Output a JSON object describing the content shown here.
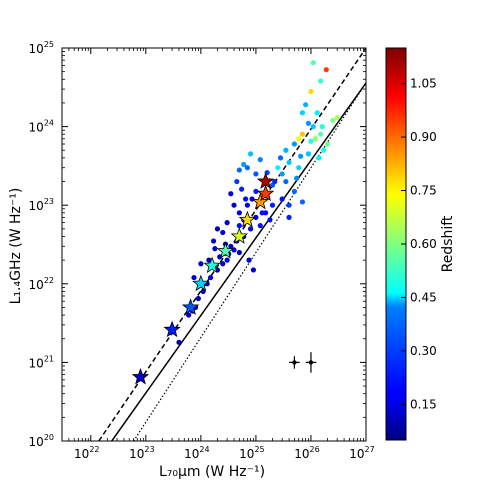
{
  "chart_data": {
    "type": "scatter",
    "title": "",
    "xlabel": "L₇₀μm (W Hz⁻¹)",
    "ylabel": "L₁.₄GHz (W Hz⁻¹)",
    "x_scale": "log",
    "y_scale": "log",
    "xlim": [
      3e+21,
      1e+27
    ],
    "ylim": [
      1e+20,
      1e+25
    ],
    "grid": false,
    "x_ticks": [
      {
        "value": 1e+22,
        "base": "10",
        "exp": "22"
      },
      {
        "value": 1e+23,
        "base": "10",
        "exp": "23"
      },
      {
        "value": 1e+24,
        "base": "10",
        "exp": "24"
      },
      {
        "value": 1e+25,
        "base": "10",
        "exp": "25"
      },
      {
        "value": 1e+26,
        "base": "10",
        "exp": "26"
      },
      {
        "value": 1e+27,
        "base": "10",
        "exp": "27"
      }
    ],
    "y_ticks": [
      {
        "value": 1e+20,
        "base": "10",
        "exp": "20"
      },
      {
        "value": 1e+21,
        "base": "10",
        "exp": "21"
      },
      {
        "value": 1e+22,
        "base": "10",
        "exp": "22"
      },
      {
        "value": 1e+23,
        "base": "10",
        "exp": "23"
      },
      {
        "value": 1e+24,
        "base": "10",
        "exp": "24"
      },
      {
        "value": 1e+25,
        "base": "10",
        "exp": "25"
      }
    ],
    "colorbar": {
      "label": "Redshift",
      "colormap": "jet",
      "range": [
        0.05,
        1.15
      ],
      "ticks": [
        "0.15",
        "0.30",
        "0.45",
        "0.60",
        "0.75",
        "0.90",
        "1.05"
      ]
    },
    "series_points": [
      {
        "x": 5e+24,
        "y": 2.8e+23,
        "z": 0.3
      },
      {
        "x": 6e+24,
        "y": 3.3e+23,
        "z": 0.35
      },
      {
        "x": 4.5e+24,
        "y": 2e+23,
        "z": 0.25
      },
      {
        "x": 8e+24,
        "y": 4.5e+23,
        "z": 0.4
      },
      {
        "x": 7e+24,
        "y": 3e+23,
        "z": 0.3
      },
      {
        "x": 1e+25,
        "y": 2.5e+23,
        "z": 0.28
      },
      {
        "x": 5.5e+24,
        "y": 1.6e+23,
        "z": 0.22
      },
      {
        "x": 1.2e+25,
        "y": 3.8e+23,
        "z": 0.33
      },
      {
        "x": 3e+25,
        "y": 2.5e+23,
        "z": 0.35
      },
      {
        "x": 4e+25,
        "y": 3.5e+23,
        "z": 0.4
      },
      {
        "x": 3.5e+25,
        "y": 2e+23,
        "z": 0.3
      },
      {
        "x": 2e+25,
        "y": 1.8e+23,
        "z": 0.28
      },
      {
        "x": 2.5e+25,
        "y": 3e+23,
        "z": 0.45
      },
      {
        "x": 6e+25,
        "y": 3e+23,
        "z": 0.42
      },
      {
        "x": 5e+25,
        "y": 1.5e+23,
        "z": 0.3
      },
      {
        "x": 4e+25,
        "y": 1e+23,
        "z": 0.25
      },
      {
        "x": 3e+25,
        "y": 1.2e+23,
        "z": 0.2
      },
      {
        "x": 2e+25,
        "y": 1e+23,
        "z": 0.22
      },
      {
        "x": 1.5e+25,
        "y": 8e+22,
        "z": 0.18
      },
      {
        "x": 1.2e+25,
        "y": 5.5e+22,
        "z": 0.2
      },
      {
        "x": 1e+25,
        "y": 7e+22,
        "z": 0.18
      },
      {
        "x": 8e+24,
        "y": 5e+22,
        "z": 0.15
      },
      {
        "x": 6e+24,
        "y": 4e+22,
        "z": 0.17
      },
      {
        "x": 5e+24,
        "y": 5.5e+22,
        "z": 0.2
      },
      {
        "x": 4.5e+24,
        "y": 3.5e+22,
        "z": 0.16
      },
      {
        "x": 4e+24,
        "y": 2.7e+22,
        "z": 0.18
      },
      {
        "x": 3.5e+24,
        "y": 3e+22,
        "z": 0.15
      },
      {
        "x": 3e+24,
        "y": 2e+22,
        "z": 0.17
      },
      {
        "x": 2.5e+24,
        "y": 1.8e+22,
        "z": 0.12
      },
      {
        "x": 2.2e+24,
        "y": 2.2e+22,
        "z": 0.14
      },
      {
        "x": 2e+24,
        "y": 1.5e+22,
        "z": 0.13
      },
      {
        "x": 1.8e+24,
        "y": 2.8e+22,
        "z": 0.12
      },
      {
        "x": 1.5e+24,
        "y": 1.2e+22,
        "z": 0.15
      },
      {
        "x": 1.3e+24,
        "y": 1e+22,
        "z": 0.1
      },
      {
        "x": 1.1e+24,
        "y": 8e+21,
        "z": 0.12
      },
      {
        "x": 9e+23,
        "y": 6.5e+21,
        "z": 0.11
      },
      {
        "x": 8e+23,
        "y": 5e+21,
        "z": 0.13
      },
      {
        "x": 7e+23,
        "y": 4.5e+21,
        "z": 0.1
      },
      {
        "x": 6e+23,
        "y": 4e+21,
        "z": 0.12
      },
      {
        "x": 5e+24,
        "y": 8e+22,
        "z": 0.14
      },
      {
        "x": 6.5e+24,
        "y": 1.2e+23,
        "z": 0.2
      },
      {
        "x": 3e+24,
        "y": 6e+22,
        "z": 0.12
      },
      {
        "x": 4e+24,
        "y": 1e+23,
        "z": 0.13
      },
      {
        "x": 3.5e+24,
        "y": 1.4e+23,
        "z": 0.16
      },
      {
        "x": 7.5e+24,
        "y": 2e+22,
        "z": 0.15
      },
      {
        "x": 9e+24,
        "y": 1.5e+22,
        "z": 0.14
      },
      {
        "x": 1.3e+25,
        "y": 8e+22,
        "z": 0.2
      },
      {
        "x": 1.6e+25,
        "y": 1.3e+23,
        "z": 0.25
      },
      {
        "x": 1.8e+25,
        "y": 6.5e+22,
        "z": 0.2
      },
      {
        "x": 2.5e+24,
        "y": 4.5e+22,
        "z": 0.15
      },
      {
        "x": 2e+24,
        "y": 5e+22,
        "z": 0.11
      },
      {
        "x": 1.7e+24,
        "y": 3.5e+22,
        "z": 0.13
      },
      {
        "x": 5e+24,
        "y": 2.5e+22,
        "z": 0.12
      },
      {
        "x": 6e+24,
        "y": 6.5e+22,
        "z": 0.16
      },
      {
        "x": 7e+24,
        "y": 1e+23,
        "z": 0.17
      },
      {
        "x": 8.5e+24,
        "y": 1.2e+23,
        "z": 0.18
      },
      {
        "x": 1e+25,
        "y": 1.5e+23,
        "z": 0.22
      },
      {
        "x": 1.1e+26,
        "y": 6.5e+24,
        "z": 0.55
      },
      {
        "x": 1.5e+26,
        "y": 3.8e+24,
        "z": 0.52
      },
      {
        "x": 1e+26,
        "y": 2.8e+24,
        "z": 0.78
      },
      {
        "x": 1.9e+26,
        "y": 5.3e+24,
        "z": 0.95
      },
      {
        "x": 2.5e+26,
        "y": 1.2e+24,
        "z": 0.6
      },
      {
        "x": 3e+26,
        "y": 1.3e+24,
        "z": 0.65
      },
      {
        "x": 1.3e+26,
        "y": 1.5e+24,
        "z": 0.45
      },
      {
        "x": 1.6e+26,
        "y": 1e+24,
        "z": 0.5
      },
      {
        "x": 1.1e+26,
        "y": 1e+24,
        "z": 0.4
      },
      {
        "x": 9e+25,
        "y": 1.1e+24,
        "z": 0.35
      },
      {
        "x": 7e+25,
        "y": 1.5e+24,
        "z": 0.42
      },
      {
        "x": 8e+25,
        "y": 1.9e+24,
        "z": 0.38
      },
      {
        "x": 6e+25,
        "y": 7e+23,
        "z": 0.72
      },
      {
        "x": 7e+25,
        "y": 8e+23,
        "z": 0.8
      },
      {
        "x": 5e+25,
        "y": 6e+23,
        "z": 0.35
      },
      {
        "x": 1e+26,
        "y": 6.5e+23,
        "z": 0.5
      },
      {
        "x": 1.2e+26,
        "y": 7e+23,
        "z": 0.62
      },
      {
        "x": 1.5e+26,
        "y": 8e+23,
        "z": 0.55
      },
      {
        "x": 2e+26,
        "y": 6e+23,
        "z": 0.58
      },
      {
        "x": 1.7e+26,
        "y": 5e+23,
        "z": 0.48
      },
      {
        "x": 1.4e+26,
        "y": 4e+23,
        "z": 0.45
      },
      {
        "x": 9e+25,
        "y": 4.5e+23,
        "z": 0.4
      },
      {
        "x": 6.5e+25,
        "y": 4.2e+23,
        "z": 0.35
      },
      {
        "x": 5.5e+25,
        "y": 2.2e+23,
        "z": 0.33
      },
      {
        "x": 4e+25,
        "y": 7e+22,
        "z": 0.22
      },
      {
        "x": 7e+25,
        "y": 1.1e+23,
        "z": 0.3
      },
      {
        "x": 2.2e+25,
        "y": 2e+23,
        "z": 0.23
      },
      {
        "x": 3.5e+25,
        "y": 5e+23,
        "z": 0.38
      },
      {
        "x": 2.8e+25,
        "y": 4e+23,
        "z": 0.3
      },
      {
        "x": 1.6e+25,
        "y": 2.6e+23,
        "z": 0.25
      },
      {
        "x": 3.2e+24,
        "y": 2.4e+22,
        "z": 0.1
      },
      {
        "x": 2.8e+24,
        "y": 3.2e+22,
        "z": 0.13
      },
      {
        "x": 1.4e+24,
        "y": 2e+22,
        "z": 0.11
      },
      {
        "x": 4e+23,
        "y": 1.8e+21,
        "z": 0.1
      },
      {
        "x": 1e+24,
        "y": 1.8e+22,
        "z": 0.12
      },
      {
        "x": 7.5e+23,
        "y": 1.2e+22,
        "z": 0.14
      }
    ],
    "star_points": [
      {
        "x": 8e+22,
        "y": 6.5e+20,
        "z": 0.12
      },
      {
        "x": 3e+23,
        "y": 2.6e+21,
        "z": 0.22
      },
      {
        "x": 6.5e+23,
        "y": 5e+21,
        "z": 0.28
      },
      {
        "x": 1e+24,
        "y": 1e+22,
        "z": 0.42
      },
      {
        "x": 1.6e+24,
        "y": 1.7e+22,
        "z": 0.5
      },
      {
        "x": 2.8e+24,
        "y": 2.6e+22,
        "z": 0.55
      },
      {
        "x": 5e+24,
        "y": 4e+22,
        "z": 0.7
      },
      {
        "x": 7e+24,
        "y": 6.5e+22,
        "z": 0.78
      },
      {
        "x": 1.2e+25,
        "y": 1.1e+23,
        "z": 0.85
      },
      {
        "x": 1.5e+25,
        "y": 1.4e+23,
        "z": 0.95
      },
      {
        "x": 1.5e+25,
        "y": 2e+23,
        "z": 1.1
      }
    ],
    "error_bars": [
      {
        "x": 5e+25,
        "y": 1e+21,
        "xerr_factor": 1.25,
        "yerr_factor": 1.2
      },
      {
        "x": 1e+26,
        "y": 1e+21,
        "xerr_factor": 1.25,
        "yerr_factor": 1.35
      }
    ],
    "lines": [
      {
        "name": "",
        "style": "dashed",
        "points": [
          [
            1.4e+22,
            1e+20
          ],
          [
            1e+27,
            1e+25
          ]
        ]
      },
      {
        "name": "",
        "style": "solid",
        "points": [
          [
            2.4e+22,
            1e+20
          ],
          [
            1e+27,
            3.6e+24
          ]
        ]
      },
      {
        "name": "",
        "style": "dotted",
        "points": [
          [
            6e+22,
            1e+20
          ],
          [
            1e+27,
            3.6e+24
          ]
        ]
      }
    ]
  }
}
